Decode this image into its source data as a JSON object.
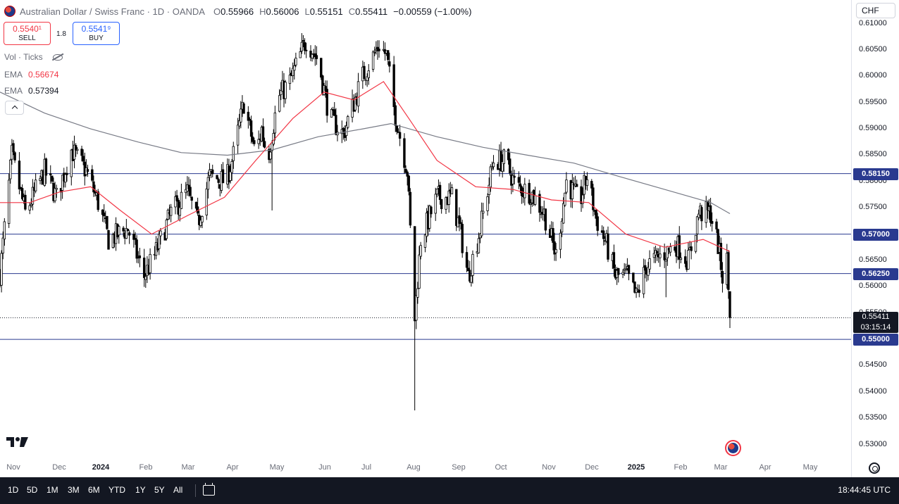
{
  "header": {
    "symbol_title": "Australian Dollar / Swiss Franc · 1D · OANDA",
    "open_key": "O",
    "open": "0.55966",
    "high_key": "H",
    "high": "0.56006",
    "low_key": "L",
    "low": "0.55151",
    "close_key": "C",
    "close": "0.55411",
    "change": "−0.00559 (−1.00%)"
  },
  "trade": {
    "sell_price": "0.5540¹",
    "sell_label": "SELL",
    "spread": "1.8",
    "buy_price": "0.5541⁹",
    "buy_label": "BUY"
  },
  "indicators": {
    "vol_label": "Vol · Ticks",
    "ema1_label": "EMA",
    "ema1_value": "0.56674",
    "ema1_color": "#f23645",
    "ema2_label": "EMA",
    "ema2_value": "0.57394",
    "ema2_color": "#787b86"
  },
  "price_axis": {
    "currency": "CHF",
    "last_price": "0.55411",
    "countdown": "03:15:14"
  },
  "time_range_buttons": [
    "1D",
    "5D",
    "1M",
    "3M",
    "6M",
    "YTD",
    "1Y",
    "5Y",
    "All"
  ],
  "clock": "18:44:45 UTC",
  "colors": {
    "up": "#ffffff",
    "down": "#000000",
    "wick": "#000000",
    "hline": "#2a3a8f",
    "ema_fast": "#f23645",
    "ema_slow": "#787b86"
  },
  "chart_data": {
    "type": "candlestick",
    "title": "Australian Dollar / Swiss Franc · 1D · OANDA",
    "ylim": [
      0.527,
      0.6145
    ],
    "y_ticks": [
      "0.61000",
      "0.60500",
      "0.60000",
      "0.59500",
      "0.59000",
      "0.58500",
      "0.58000",
      "0.57500",
      "0.57000",
      "0.56500",
      "0.56000",
      "0.55500",
      "0.55000",
      "0.54500",
      "0.54000",
      "0.53500",
      "0.53000"
    ],
    "x_ticks": [
      {
        "label": "Nov",
        "bold": false
      },
      {
        "label": "Dec",
        "bold": false
      },
      {
        "label": "2024",
        "bold": true
      },
      {
        "label": "Feb",
        "bold": false
      },
      {
        "label": "Mar",
        "bold": false
      },
      {
        "label": "Apr",
        "bold": false
      },
      {
        "label": "May",
        "bold": false
      },
      {
        "label": "Jun",
        "bold": false
      },
      {
        "label": "Jul",
        "bold": false
      },
      {
        "label": "Aug",
        "bold": false
      },
      {
        "label": "Sep",
        "bold": false
      },
      {
        "label": "Oct",
        "bold": false
      },
      {
        "label": "Nov",
        "bold": false
      },
      {
        "label": "Dec",
        "bold": false
      },
      {
        "label": "2025",
        "bold": true
      },
      {
        "label": "Feb",
        "bold": false
      },
      {
        "label": "Mar",
        "bold": false
      },
      {
        "label": "Apr",
        "bold": false
      },
      {
        "label": "May",
        "bold": false
      }
    ],
    "horizontal_levels": [
      "0.58150",
      "0.57000",
      "0.56250",
      "0.55000"
    ],
    "last_price": 0.55411,
    "price_path": [
      [
        "Oct 31 2023",
        0.5625
      ],
      [
        "Nov 8 2023",
        0.585
      ],
      [
        "Nov 17 2023",
        0.574
      ],
      [
        "Nov 30 2023",
        0.582
      ],
      [
        "Dec 8 2023",
        0.577
      ],
      [
        "Dec 18 2023",
        0.586
      ],
      [
        "Dec 28 2023",
        0.582
      ],
      [
        "Jan 5 2024",
        0.576
      ],
      [
        "Jan 12 2024",
        0.569
      ],
      [
        "Jan 25 2024",
        0.571
      ],
      [
        "Feb 5 2024",
        0.562
      ],
      [
        "Feb 12 2024",
        0.566
      ],
      [
        "Feb 23 2024",
        0.574
      ],
      [
        "Mar 5 2024",
        0.578
      ],
      [
        "Mar 12 2024",
        0.572
      ],
      [
        "Mar 20 2024",
        0.581
      ],
      [
        "Mar 31 2024",
        0.58
      ],
      [
        "Apr 5 2024",
        0.585
      ],
      [
        "Apr 12 2024",
        0.595
      ],
      [
        "Apr 20 2024",
        0.585
      ],
      [
        "Apr 24 2024",
        0.59
      ],
      [
        "Apr 28 2024",
        0.584
      ],
      [
        "May 5 2024",
        0.596
      ],
      [
        "May 13 2024",
        0.599
      ],
      [
        "May 24 2024",
        0.607
      ],
      [
        "Jun 1 2024",
        0.603
      ],
      [
        "Jun 9 2024",
        0.592
      ],
      [
        "Jun 18 2024",
        0.589
      ],
      [
        "Jun 22 2024",
        0.5925
      ],
      [
        "Jul 1 2024",
        0.6
      ],
      [
        "Jul 12 2024",
        0.606
      ],
      [
        "Jul 17 2024",
        0.604
      ],
      [
        "Jul 22 2024",
        0.594
      ],
      [
        "Jul 31 2024",
        0.582
      ],
      [
        "Aug 5 2024",
        0.554
      ],
      [
        "Aug 9 2024",
        0.569
      ],
      [
        "Aug 20 2024",
        0.577
      ],
      [
        "Aug 30 2024",
        0.577
      ],
      [
        "Sep 5 2024",
        0.57
      ],
      [
        "Sep 10 2024",
        0.562
      ],
      [
        "Sep 18 2024",
        0.571
      ],
      [
        "Sep 27 2024",
        0.584
      ],
      [
        "Oct 5 2024",
        0.584
      ],
      [
        "Oct 12 2024",
        0.579
      ],
      [
        "Oct 22 2024",
        0.578
      ],
      [
        "Oct 31 2024",
        0.574
      ],
      [
        "Nov 8 2024",
        0.566
      ],
      [
        "Nov 15 2024",
        0.58
      ],
      [
        "Nov 24 2024",
        0.576
      ],
      [
        "Nov 29 2024",
        0.581
      ],
      [
        "Dec 5 2024",
        0.573
      ],
      [
        "Dec 12 2024",
        0.568
      ],
      [
        "Dec 18 2024",
        0.562
      ],
      [
        "Dec 26 2024",
        0.562
      ],
      [
        "Jan 1 2025",
        0.558
      ],
      [
        "Jan 8 2025",
        0.564
      ],
      [
        "Jan 18 2025",
        0.566
      ],
      [
        "Jan 28 2025",
        0.568
      ],
      [
        "Feb 5 2025",
        0.565
      ],
      [
        "Feb 12 2025",
        0.574
      ],
      [
        "Feb 20 2025",
        0.574
      ],
      [
        "Feb 25 2025",
        0.568
      ],
      [
        "Mar 1 2025",
        0.56
      ],
      [
        "Mar 3 2025",
        0.565
      ],
      [
        "Mar 5 2025",
        0.5541
      ]
    ],
    "low_spikes": [
      [
        "May 1 2024",
        0.5745
      ],
      [
        "Aug 5 2024",
        0.5365
      ],
      [
        "Jan 21 2025",
        0.558
      ]
    ],
    "ema_fast_path": [
      [
        "Oct 31 2023",
        0.576
      ],
      [
        "Nov 20 2023",
        0.576
      ],
      [
        "Dec 10 2023",
        0.578
      ],
      [
        "Dec 31 2023",
        0.579
      ],
      [
        "Jan 20 2024",
        0.5745
      ],
      [
        "Feb 10 2024",
        0.57
      ],
      [
        "Mar 5 2024",
        0.5735
      ],
      [
        "Mar 30 2024",
        0.577
      ],
      [
        "Apr 20 2024",
        0.584
      ],
      [
        "May 15 2024",
        0.592
      ],
      [
        "Jun 5 2024",
        0.597
      ],
      [
        "Jun 25 2024",
        0.5955
      ],
      [
        "Jul 15 2024",
        0.599
      ],
      [
        "Aug 1 2024",
        0.592
      ],
      [
        "Aug 20 2024",
        0.584
      ],
      [
        "Sep 15 2024",
        0.579
      ],
      [
        "Oct 10 2024",
        0.5785
      ],
      [
        "Nov 5 2024",
        0.5765
      ],
      [
        "Nov 30 2024",
        0.576
      ],
      [
        "Dec 25 2024",
        0.57
      ],
      [
        "Jan 20 2025",
        0.5675
      ],
      [
        "Feb 15 2025",
        0.569
      ],
      [
        "Mar 5 2025",
        0.5667
      ]
    ],
    "ema_slow_path": [
      [
        "Oct 31 2023",
        0.597
      ],
      [
        "Nov 30 2023",
        0.593
      ],
      [
        "Dec 31 2023",
        0.59
      ],
      [
        "Feb 1 2024",
        0.5875
      ],
      [
        "Mar 1 2024",
        0.5855
      ],
      [
        "Apr 1 2024",
        0.585
      ],
      [
        "May 1 2024",
        0.586
      ],
      [
        "Jun 1 2024",
        0.5885
      ],
      [
        "Jul 1 2024",
        0.59
      ],
      [
        "Jul 20 2024",
        0.591
      ],
      [
        "Aug 20 2024",
        0.5885
      ],
      [
        "Sep 20 2024",
        0.5865
      ],
      [
        "Oct 20 2024",
        0.585
      ],
      [
        "Nov 20 2024",
        0.5835
      ],
      [
        "Dec 20 2024",
        0.581
      ],
      [
        "Jan 20 2025",
        0.5785
      ],
      [
        "Feb 20 2025",
        0.576
      ],
      [
        "Mar 5 2025",
        0.5739
      ]
    ]
  }
}
